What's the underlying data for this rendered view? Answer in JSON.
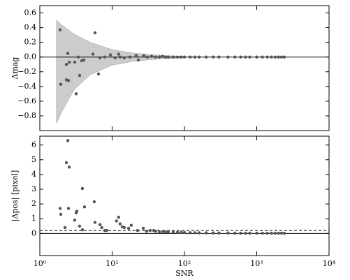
{
  "chart_data": [
    {
      "type": "scatter",
      "ylabel": "Δmag",
      "log_x": true,
      "xlim": [
        1,
        10000
      ],
      "ylim": [
        -1.0,
        0.7
      ],
      "xticks": [
        1,
        10,
        100,
        1000,
        10000
      ],
      "yticks": [
        {
          "value": 0.6,
          "label": "0.6"
        },
        {
          "value": 0.4,
          "label": "0.4"
        },
        {
          "value": 0.2,
          "label": "0.2"
        },
        {
          "value": 0,
          "label": "0.0"
        },
        {
          "value": -0.2,
          "label": "−0.2"
        },
        {
          "value": -0.4,
          "label": "−0.4"
        },
        {
          "value": -0.6,
          "label": "−0.6"
        },
        {
          "value": -0.8,
          "label": "−0.8"
        }
      ],
      "band": {
        "color": "#cccccc",
        "x": [
          1.7,
          2,
          3,
          5,
          10,
          20,
          50,
          100
        ],
        "upper": [
          0.5,
          0.44,
          0.31,
          0.2,
          0.1,
          0.053,
          0.021,
          0.011
        ],
        "lower": [
          -0.9,
          -0.75,
          -0.44,
          -0.24,
          -0.11,
          -0.056,
          -0.022,
          -0.011
        ]
      },
      "hlines": [
        {
          "y": 0,
          "style": "solid"
        }
      ],
      "color": "#555555",
      "x": [
        1.91,
        1.95,
        2.33,
        2.44,
        2.33,
        2.55,
        2.49,
        3.04,
        3.18,
        3.55,
        3.4,
        3.8,
        4.06,
        5.8,
        5.43,
        6.48,
        6.8,
        7.9,
        9.46,
        11,
        12.3,
        12.9,
        14.7,
        17.6,
        21.5,
        23,
        27.5,
        30.7,
        35.2,
        40,
        45,
        50,
        55,
        60,
        70,
        80,
        90,
        100,
        120,
        140,
        160,
        200,
        250,
        300,
        400,
        500,
        600,
        700,
        800,
        1000,
        1200,
        1400,
        1600,
        1800,
        2000,
        2200,
        2400
      ],
      "y": [
        0.37,
        -0.37,
        -0.31,
        0.05,
        -0.1,
        -0.07,
        -0.32,
        -0.07,
        -0.5,
        -0.25,
        0,
        -0.05,
        -0.04,
        0.33,
        0.04,
        -0.23,
        -0.01,
        0,
        0.03,
        -0.01,
        0.04,
        0,
        -0.01,
        0,
        0.02,
        -0.04,
        0.02,
        0,
        0.01,
        0,
        0,
        0.01,
        0,
        0,
        0,
        0,
        0,
        0,
        0,
        0,
        0,
        0,
        0,
        0,
        0,
        0,
        0,
        0,
        0,
        0,
        0,
        0,
        0,
        0,
        0,
        0,
        0
      ]
    },
    {
      "type": "scatter",
      "ylabel": "|Δpos| [pixel]",
      "xlabel": "SNR",
      "log_x": true,
      "xlim": [
        1,
        10000
      ],
      "ylim": [
        -1.5,
        6.6
      ],
      "xticks": [
        {
          "value": 1,
          "label": "10⁰"
        },
        {
          "value": 10,
          "label": "10¹"
        },
        {
          "value": 100,
          "label": "10²"
        },
        {
          "value": 1000,
          "label": "10³"
        },
        {
          "value": 10000,
          "label": "10⁴"
        }
      ],
      "yticks": [
        0,
        1,
        2,
        3,
        4,
        5,
        6
      ],
      "hlines": [
        {
          "y": 0,
          "style": "solid"
        },
        {
          "y": 0.2,
          "style": "dashed"
        }
      ],
      "color": "#555555",
      "x": [
        1.91,
        1.95,
        2.23,
        2.44,
        2.33,
        2.55,
        2.49,
        3.04,
        3.18,
        3.25,
        3.88,
        4.15,
        3.55,
        3.88,
        5.66,
        5.8,
        6.8,
        7.2,
        7.9,
        8.4,
        11.5,
        12.3,
        12.9,
        13.8,
        14.7,
        18.4,
        16.9,
        22.5,
        27,
        30,
        33.6,
        37.6,
        40,
        45,
        50,
        55,
        60,
        70,
        80,
        90,
        100,
        120,
        140,
        160,
        200,
        250,
        300,
        400,
        500,
        600,
        700,
        800,
        1000,
        1200,
        1400,
        1600,
        1800,
        2000,
        2200,
        2400
      ],
      "y": [
        1.7,
        1.3,
        0.4,
        6.3,
        4.8,
        4.5,
        1.7,
        0.9,
        1.4,
        1.5,
        3.05,
        1.8,
        0.5,
        0.25,
        2.15,
        0.75,
        0.6,
        0.4,
        0.2,
        0.2,
        0.85,
        1.1,
        0.65,
        0.45,
        0.4,
        0.55,
        0.35,
        0.2,
        0.35,
        0.15,
        0.2,
        0.2,
        0.15,
        0.1,
        0.12,
        0.1,
        0.08,
        0.1,
        0.07,
        0.08,
        0.06,
        0.05,
        0.05,
        0.04,
        0.04,
        0.03,
        0.03,
        0.03,
        0.02,
        0.02,
        0.02,
        0.02,
        0.02,
        0.02,
        0.02,
        0.02,
        0.02,
        0.02,
        0.02,
        0.02
      ]
    }
  ]
}
